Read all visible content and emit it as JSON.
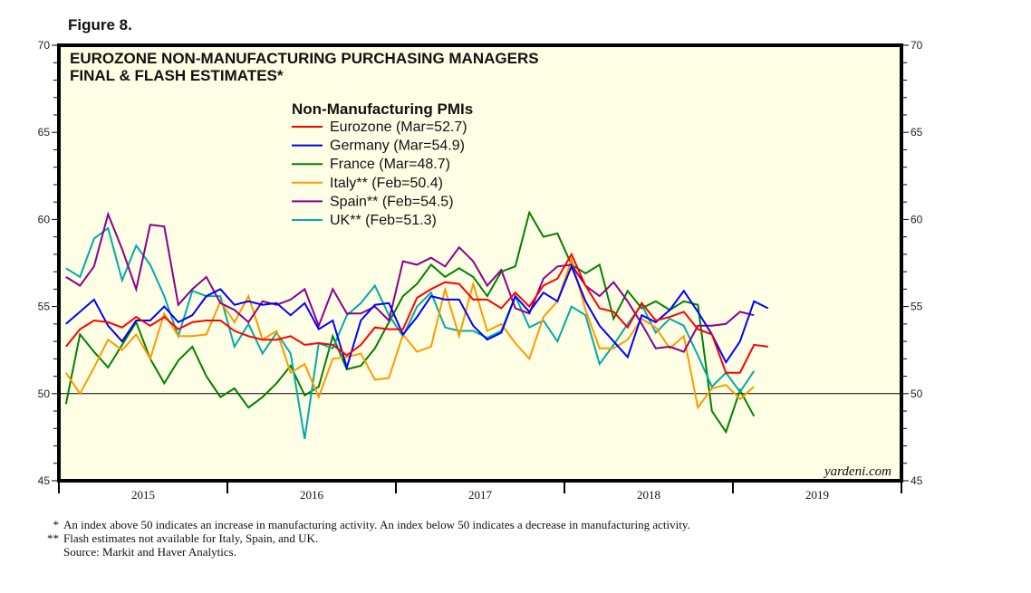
{
  "figure_label": "Figure 8.",
  "watermark": "yardeni.com",
  "footnotes": [
    {
      "mark": "*",
      "text": "An index above 50 indicates an increase in manufacturing activity. An index below 50 indicates a decrease in manufacturing activity."
    },
    {
      "mark": "**",
      "text": "Flash estimates not available for Italy, Spain, and UK."
    },
    {
      "mark": "",
      "text": "Source: Markit and Haver Analytics."
    }
  ],
  "chart_data": {
    "type": "line",
    "title": [
      "EUROZONE NON-MANUFACTURING PURCHASING MANAGERS",
      "FINAL & FLASH ESTIMATES*"
    ],
    "legend_title": "Non-Manufacturing PMIs",
    "legend_position": "top-center",
    "xlabel": "",
    "ylabel": "",
    "ylim": [
      45,
      70
    ],
    "yticks": [
      45,
      50,
      55,
      60,
      65,
      70
    ],
    "xlim": [
      "2015-01",
      "2019-12"
    ],
    "xticks": [
      "2015",
      "2016",
      "2017",
      "2018",
      "2019"
    ],
    "reference_line": 50,
    "grid": false,
    "x_start": "2015-01",
    "x_step": "month",
    "series": [
      {
        "name": "Eurozone (Mar=52.7)",
        "color": "#ff0000",
        "values": [
          52.7,
          53.7,
          54.2,
          54.1,
          53.8,
          54.4,
          53.9,
          54.4,
          53.7,
          54.1,
          54.2,
          54.2,
          53.6,
          53.3,
          53.1,
          53.1,
          53.3,
          52.8,
          52.9,
          52.8,
          52.2,
          52.8,
          53.8,
          53.7,
          53.7,
          55.5,
          56.0,
          56.4,
          56.3,
          55.4,
          55.4,
          54.9,
          55.8,
          55.0,
          56.2,
          56.6,
          58.0,
          56.2,
          54.9,
          54.7,
          53.8,
          55.2,
          54.2,
          54.4,
          54.7,
          53.7,
          53.4,
          51.2,
          51.2,
          52.8,
          52.7
        ]
      },
      {
        "name": "Germany (Mar=54.9)",
        "color": "#0000ff",
        "values": [
          54.0,
          54.7,
          55.4,
          53.9,
          53.0,
          54.2,
          54.2,
          55.0,
          54.1,
          54.5,
          55.6,
          56.0,
          55.1,
          55.3,
          55.1,
          55.2,
          54.5,
          55.2,
          53.7,
          54.2,
          51.5,
          54.2,
          55.1,
          55.2,
          53.4,
          54.4,
          55.6,
          55.4,
          55.4,
          53.9,
          53.1,
          53.5,
          55.6,
          54.7,
          55.8,
          55.3,
          57.3,
          55.3,
          53.9,
          53.0,
          52.1,
          54.5,
          54.1,
          54.8,
          55.9,
          54.7,
          53.4,
          51.8,
          53.0,
          55.3,
          54.9
        ]
      },
      {
        "name": "France (Mar=48.7)",
        "color": "#008000",
        "values": [
          49.4,
          53.4,
          52.4,
          51.5,
          52.8,
          54.1,
          52.0,
          50.6,
          51.9,
          52.7,
          51.0,
          49.8,
          50.3,
          49.2,
          49.8,
          50.6,
          51.6,
          49.9,
          50.4,
          53.3,
          51.4,
          51.6,
          52.6,
          54.1,
          55.6,
          56.3,
          57.4,
          56.7,
          57.2,
          56.7,
          55.6,
          57.0,
          57.3,
          60.4,
          59.0,
          59.2,
          57.4,
          56.9,
          57.4,
          54.3,
          55.9,
          54.9,
          55.3,
          54.8,
          55.3,
          55.1,
          49.0,
          47.8,
          50.2,
          48.7
        ]
      },
      {
        "name": "Italy** (Feb=50.4)",
        "color": "#ff9900",
        "values": [
          51.2,
          50.0,
          51.5,
          53.1,
          52.5,
          53.4,
          52.0,
          54.6,
          53.3,
          53.3,
          53.4,
          55.3,
          54.1,
          55.6,
          53.1,
          53.6,
          51.2,
          51.7,
          49.8,
          52.0,
          52.1,
          52.3,
          50.8,
          50.9,
          53.4,
          52.4,
          52.7,
          56.0,
          53.3,
          56.3,
          53.6,
          54.0,
          52.9,
          52.0,
          54.4,
          55.3,
          57.7,
          54.8,
          52.6,
          52.6,
          53.1,
          54.3,
          53.8,
          52.6,
          53.3,
          49.2,
          50.3,
          50.5,
          49.7,
          50.4
        ]
      },
      {
        "name": "Spain** (Feb=54.5)",
        "color": "#8b008b",
        "values": [
          56.7,
          56.2,
          57.3,
          60.3,
          58.3,
          56.0,
          59.7,
          59.6,
          55.1,
          56.0,
          56.7,
          55.2,
          54.8,
          54.1,
          55.3,
          55.1,
          55.4,
          56.0,
          53.9,
          56.0,
          54.6,
          54.6,
          55.0,
          54.2,
          57.6,
          57.4,
          57.8,
          57.3,
          58.4,
          57.6,
          56.2,
          57.1,
          54.9,
          54.6,
          56.6,
          57.3,
          57.4,
          56.2,
          55.6,
          56.4,
          55.3,
          54.0,
          52.6,
          52.7,
          52.4,
          53.9,
          53.9,
          54.0,
          54.7,
          54.5
        ]
      },
      {
        "name": "UK** (Feb=51.3)",
        "color": "#00aaaa",
        "values": [
          57.2,
          56.7,
          58.9,
          59.5,
          56.5,
          58.5,
          57.4,
          55.6,
          53.3,
          55.9,
          55.6,
          55.6,
          52.7,
          54.0,
          52.3,
          53.5,
          52.3,
          47.4,
          52.9,
          52.6,
          54.5,
          55.2,
          56.2,
          54.5,
          53.3,
          55.0,
          55.8,
          53.8,
          53.6,
          53.6,
          53.2,
          53.6,
          55.6,
          53.8,
          54.2,
          53.0,
          55.0,
          54.5,
          51.7,
          52.8,
          54.0,
          55.1,
          53.5,
          54.3,
          53.9,
          52.2,
          50.4,
          51.2,
          50.1,
          51.3
        ]
      }
    ]
  }
}
